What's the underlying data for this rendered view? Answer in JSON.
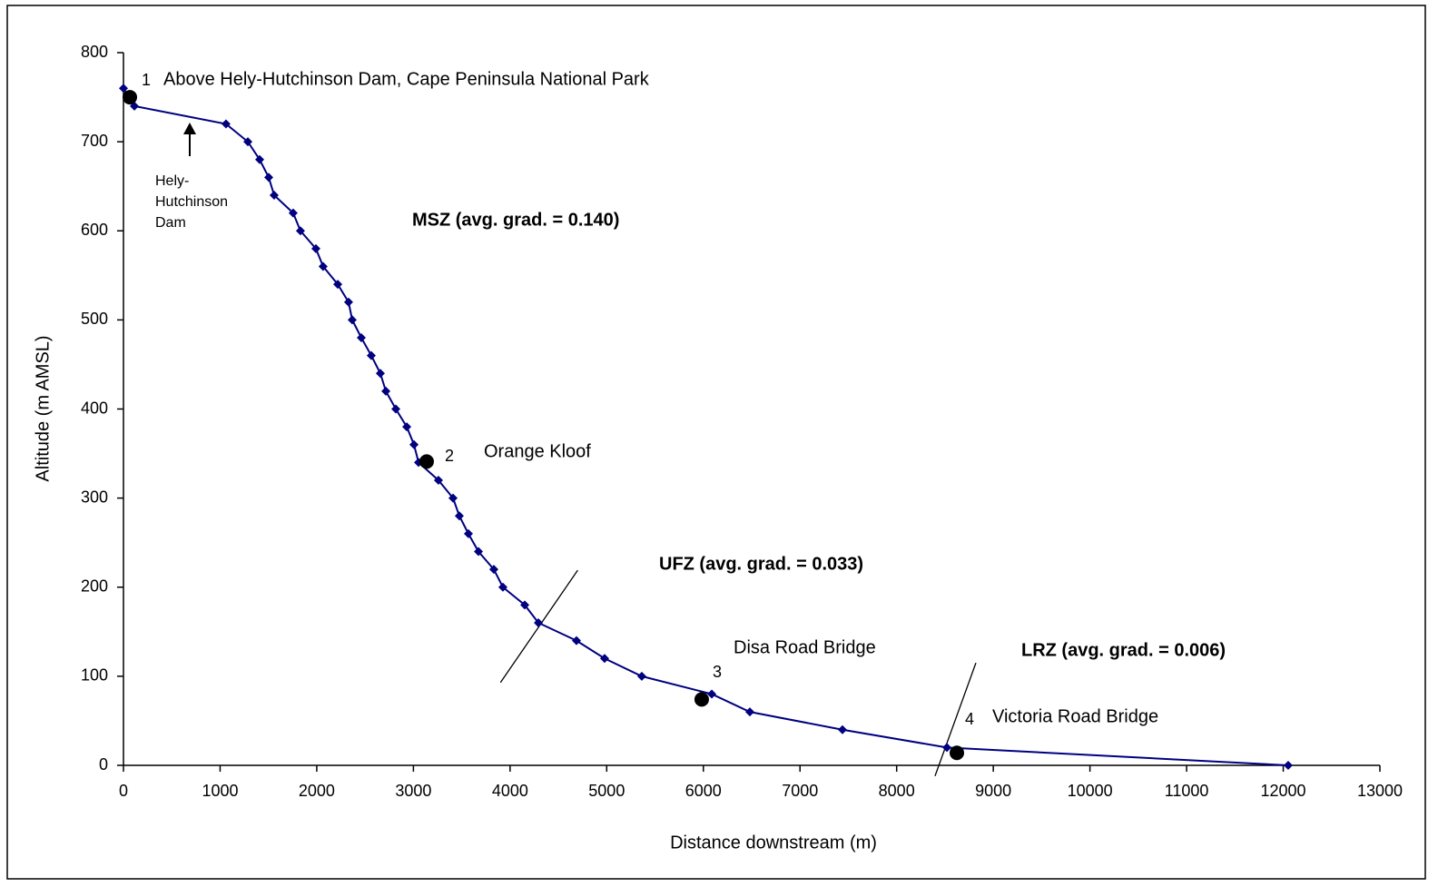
{
  "chart_data": {
    "type": "line",
    "x_label": "Distance downstream (m)",
    "y_label": "Altitude (m AMSL)",
    "xlim": [
      0,
      13000
    ],
    "xticks": [
      0,
      1000,
      2000,
      3000,
      4000,
      5000,
      6000,
      7000,
      8000,
      9000,
      10000,
      11000,
      12000,
      13000
    ],
    "ylim": [
      0,
      800
    ],
    "yticks": [
      0,
      100,
      200,
      300,
      400,
      500,
      600,
      700,
      800
    ],
    "grid": false,
    "series": [
      {
        "color": "#000080",
        "x": [
          0,
          113,
          1061,
          1287,
          1409,
          1503,
          1559,
          1756,
          1831,
          1991,
          2066,
          2217,
          2329,
          2367,
          2461,
          2564,
          2658,
          2715,
          2818,
          2931,
          3006,
          3053,
          3259,
          3410,
          3475,
          3569,
          3673,
          3832,
          3926,
          4152,
          4293,
          4687,
          4978,
          5363,
          6087,
          6481,
          7439,
          8520,
          12051
        ],
        "values": [
          760,
          740,
          720,
          700,
          680,
          660,
          640,
          620,
          600,
          580,
          560,
          540,
          520,
          500,
          480,
          460,
          440,
          420,
          400,
          380,
          360,
          340,
          320,
          300,
          280,
          260,
          240,
          220,
          200,
          180,
          160,
          140,
          120,
          100,
          80,
          60,
          40,
          20,
          0
        ]
      }
    ],
    "sites": [
      {
        "label": "1",
        "name": "Above Hely-Hutchinson Dam, Cape Peninsula National Park",
        "x": 66,
        "y": 750
      },
      {
        "label": "2",
        "name": "Orange Kloof",
        "x": 3137,
        "y": 341
      },
      {
        "label": "3",
        "name": "Disa Road Bridge",
        "x": 5983,
        "y": 74
      },
      {
        "label": "4",
        "name": "Victoria Road Bridge",
        "x": 8623,
        "y": 14
      }
    ],
    "site_color": "#000000",
    "zones": [
      "MSZ (avg. grad. = 0.140)",
      "UFZ (avg. grad. = 0.033)",
      "LRZ (avg. grad. = 0.006)"
    ],
    "boundaries": [
      {
        "x": [
          3901,
          4700
        ],
        "y": [
          93,
          219
        ]
      },
      {
        "x": [
          8397,
          8820
        ],
        "y": [
          -12,
          115
        ]
      }
    ],
    "dam_label": [
      "Hely-",
      "Hutchinson",
      "Dam"
    ]
  }
}
